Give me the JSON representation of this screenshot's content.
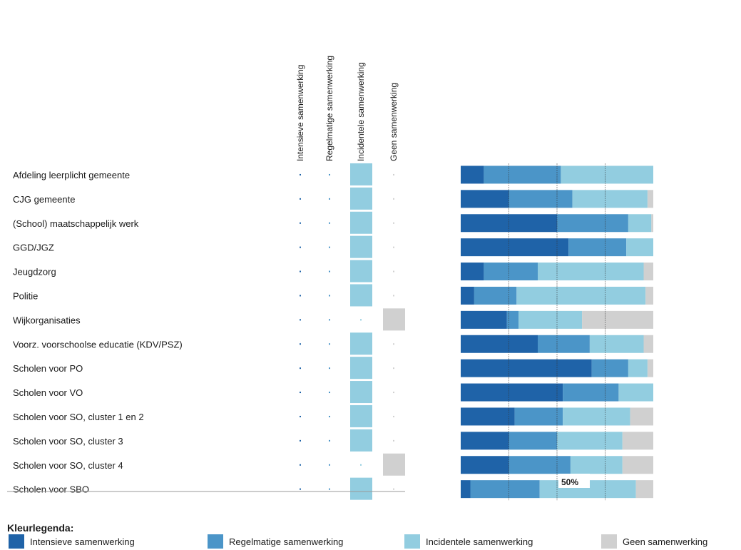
{
  "colors": {
    "intensief": "#1f63a8",
    "regelmatig": "#4b95c8",
    "incidenteel": "#92cde0",
    "geen": "#d0d0d0"
  },
  "columns": [
    "Intensieve samenwerking",
    "Regelmatige samenwerking",
    "Incidentele samenwerking",
    "Geen samenwerking"
  ],
  "chart_data": {
    "type": "bar",
    "orientation": "horizontal",
    "stacked": true,
    "normalized": true,
    "xlim": [
      0,
      100
    ],
    "x_gridlines": [
      25,
      50,
      75
    ],
    "midline_label": "50%",
    "categories": [
      "Afdeling leerplicht gemeente",
      "CJG gemeente",
      "(School) maatschappelijk werk",
      "GGD/JGZ",
      "Jeugdzorg",
      "Politie",
      "Wijkorganisaties",
      "Voorz. voorschoolse educatie (KDV/PSZ)",
      "Scholen voor PO",
      "Scholen voor VO",
      "Scholen voor SO, cluster 1 en 2",
      "Scholen voor SO, cluster 3",
      "Scholen voor SO, cluster 4",
      "Scholen voor SBO"
    ],
    "series": [
      {
        "name": "Intensieve samenwerking",
        "color": "intensief",
        "values": [
          12,
          25,
          50,
          56,
          12,
          7,
          24,
          40,
          68,
          53,
          28,
          25,
          25,
          5
        ]
      },
      {
        "name": "Regelmatige samenwerking",
        "color": "regelmatig",
        "values": [
          40,
          33,
          37,
          30,
          28,
          22,
          6,
          27,
          19,
          29,
          25,
          25,
          32,
          36
        ]
      },
      {
        "name": "Incidentele samenwerking",
        "color": "incidenteel",
        "values": [
          48,
          39,
          12,
          14,
          55,
          67,
          33,
          28,
          10,
          18,
          35,
          34,
          27,
          50
        ]
      },
      {
        "name": "Geen samenwerking",
        "color": "geen",
        "values": [
          0,
          3,
          1,
          0,
          5,
          4,
          37,
          5,
          3,
          0,
          12,
          16,
          16,
          9
        ]
      }
    ],
    "dominant_category": [
      "incidenteel",
      "incidenteel",
      "incidenteel",
      "incidenteel",
      "incidenteel",
      "incidenteel",
      "geen",
      "incidenteel",
      "incidenteel",
      "incidenteel",
      "incidenteel",
      "incidenteel",
      "geen",
      "incidenteel"
    ]
  },
  "legend": {
    "title": "Kleurlegenda:",
    "items": [
      {
        "label": "Intensieve samenwerking",
        "color": "intensief"
      },
      {
        "label": "Regelmatige samenwerking",
        "color": "regelmatig"
      },
      {
        "label": "Incidentele samenwerking",
        "color": "incidenteel"
      },
      {
        "label": "Geen samenwerking",
        "color": "geen"
      }
    ]
  }
}
